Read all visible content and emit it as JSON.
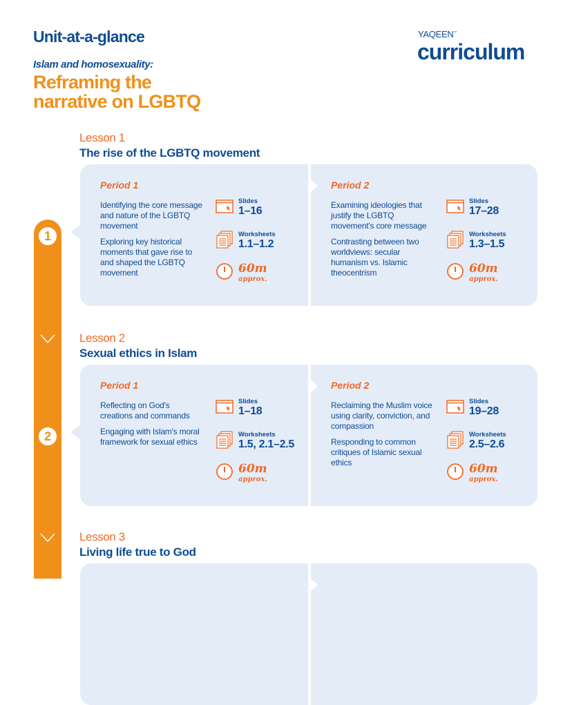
{
  "header": {
    "unit_label": "Unit-at-a-glance",
    "subtitle": "Islam and homosexuality:",
    "title_line1": "Reframing the",
    "title_line2": "narrative on LGBTQ",
    "logo_top": "YAQEEN",
    "logo_tm": "™",
    "logo_main": "curriculum"
  },
  "colors": {
    "blue": "#0f4c92",
    "orange": "#f0901a",
    "panel": "#e4ecf8"
  },
  "lessons": [
    {
      "label": "Lesson 1",
      "number": "1",
      "title": "The rise of the LGBTQ movement",
      "periods": [
        {
          "label": "Period 1",
          "texts": [
            "Identifying the core message and nature of the LGBTQ movement",
            "Exploring key historical moments that gave rise to and shaped the LGBTQ movement"
          ],
          "slides_label": "Slides",
          "slides": "1–16",
          "worksheets_label": "Worksheets",
          "worksheets": "1.1–1.2",
          "duration": "60m",
          "duration_note": "approx."
        },
        {
          "label": "Period 2",
          "texts": [
            "Examining ideologies that justify the LGBTQ movement's core message",
            "Contrasting between two worldviews: secular humanism vs. Islamic theocentrism"
          ],
          "slides_label": "Slides",
          "slides": "17–28",
          "worksheets_label": "Worksheets",
          "worksheets": "1.3–1.5",
          "duration": "60m",
          "duration_note": "approx."
        }
      ]
    },
    {
      "label": "Lesson 2",
      "number": "2",
      "title": "Sexual ethics in Islam",
      "periods": [
        {
          "label": "Period 1",
          "texts": [
            "Reflecting on God's creations and commands",
            "Engaging with Islam's moral framework for sexual ethics"
          ],
          "slides_label": "Slides",
          "slides": "1–18",
          "worksheets_label": "Worksheets",
          "worksheets": "1.5, 2.1–2.5",
          "duration": "60m",
          "duration_note": "approx."
        },
        {
          "label": "Period 2",
          "texts": [
            "Reclaiming the Muslim voice using clarity, conviction, and compassion",
            "Responding to common critiques of Islamic sexual ethics"
          ],
          "slides_label": "Slides",
          "slides": "19–28",
          "worksheets_label": "Worksheets",
          "worksheets": "2.5–2.6",
          "duration": "60m",
          "duration_note": "approx."
        }
      ]
    },
    {
      "label": "Lesson 3",
      "title": "Living life true to God",
      "periods": []
    }
  ]
}
